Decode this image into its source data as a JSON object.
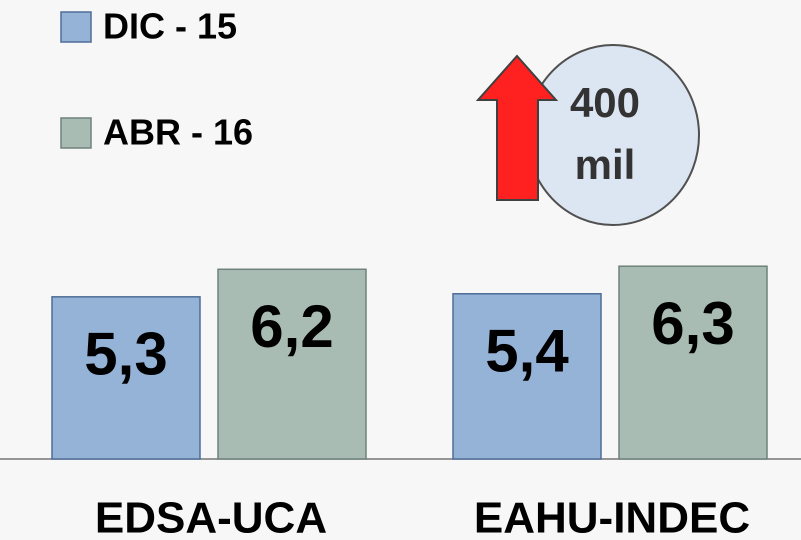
{
  "chart_data": {
    "type": "bar",
    "categories": [
      "EDSA-UCA",
      "EAHU-INDEC"
    ],
    "series": [
      {
        "name": "DIC - 15",
        "color": "#95b3d7",
        "values": [
          5.3,
          5.4
        ],
        "value_labels": [
          "5,3",
          "5,4"
        ]
      },
      {
        "name": "ABR - 16",
        "color": "#a9bcb4",
        "values": [
          6.2,
          6.3
        ],
        "value_labels": [
          "6,2",
          "6,3"
        ]
      }
    ],
    "ylim": [
      0,
      15
    ],
    "annotation": "400 mil"
  }
}
